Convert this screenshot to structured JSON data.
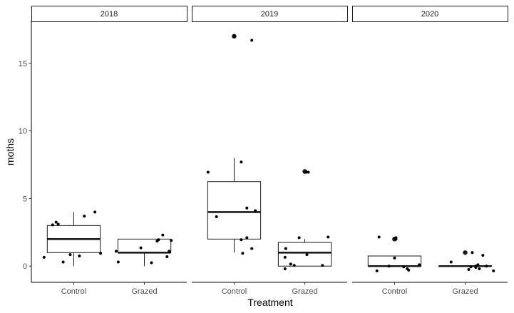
{
  "chart_data": {
    "type": "boxplot",
    "xlabel": "Treatment",
    "ylabel": "moths",
    "ylim": [
      -1.2,
      18.1
    ],
    "y_ticks": [
      0,
      5,
      10,
      15
    ],
    "y_tick_labels": [
      "0",
      "5",
      "10",
      "15"
    ],
    "categories": [
      "Control",
      "Grazed"
    ],
    "grid": false,
    "panels": [
      {
        "facet": "2018",
        "groups": [
          {
            "category": "Control",
            "q1": 1,
            "median": 2,
            "q3": 3,
            "whisker_low": 0,
            "whisker_high": 4,
            "outliers": [],
            "points": [
              [
                -0.42,
                0.65
              ],
              [
                -0.3,
                3.05
              ],
              [
                -0.25,
                3.25
              ],
              [
                -0.22,
                3.1
              ],
              [
                -0.15,
                0.3
              ],
              [
                -0.05,
                0.85
              ],
              [
                0.08,
                0.75
              ],
              [
                0.15,
                3.7
              ],
              [
                0.3,
                4.0
              ],
              [
                0.38,
                0.95
              ]
            ]
          },
          {
            "category": "Grazed",
            "q1": 1,
            "median": 1,
            "q3": 2,
            "whisker_low": 0,
            "whisker_high": 2,
            "outliers": [],
            "points": [
              [
                -0.4,
                1.1
              ],
              [
                -0.37,
                0.3
              ],
              [
                -0.05,
                1.35
              ],
              [
                0.1,
                0.25
              ],
              [
                0.18,
                1.85
              ],
              [
                0.2,
                1.95
              ],
              [
                0.26,
                2.3
              ],
              [
                0.32,
                0.7
              ],
              [
                0.35,
                1.1
              ],
              [
                0.38,
                1.9
              ]
            ]
          }
        ]
      },
      {
        "facet": "2019",
        "groups": [
          {
            "category": "Control",
            "q1": 2,
            "median": 4,
            "q3": 6.25,
            "whisker_low": 1,
            "whisker_high": 8,
            "outliers": [
              17,
              17
            ],
            "points": [
              [
                -0.37,
                6.95
              ],
              [
                -0.25,
                3.65
              ],
              [
                0.1,
                7.7
              ],
              [
                0.1,
                1.95
              ],
              [
                0.12,
                0.95
              ],
              [
                0.18,
                2.1
              ],
              [
                0.18,
                4.3
              ],
              [
                0.25,
                1.3
              ],
              [
                0.25,
                16.7
              ],
              [
                0.3,
                4.1
              ],
              [
                0.0,
                17.0
              ]
            ]
          },
          {
            "category": "Grazed",
            "q1": 0,
            "median": 1,
            "q3": 1.75,
            "whisker_low": 0,
            "whisker_high": 2,
            "outliers": [
              7,
              7
            ],
            "points": [
              [
                -0.27,
                1.3
              ],
              [
                -0.28,
                -0.2
              ],
              [
                -0.28,
                0.65
              ],
              [
                -0.2,
                0.15
              ],
              [
                -0.15,
                0.05
              ],
              [
                -0.08,
                2.1
              ],
              [
                0.02,
                6.95
              ],
              [
                0.03,
                0.85
              ],
              [
                0.05,
                6.95
              ],
              [
                0.25,
                0.05
              ],
              [
                0.33,
                2.15
              ]
            ]
          }
        ]
      },
      {
        "facet": "2020",
        "groups": [
          {
            "category": "Control",
            "q1": 0,
            "median": 0,
            "q3": 0.75,
            "whisker_low": 0,
            "whisker_high": 0.75,
            "outliers": [
              2,
              2
            ],
            "points": [
              [
                -0.25,
                -0.35
              ],
              [
                -0.22,
                2.15
              ],
              [
                -0.08,
                0.0
              ],
              [
                0.0,
                0.6
              ],
              [
                0.02,
                2.0
              ],
              [
                0.02,
                2.1
              ],
              [
                0.13,
                -0.05
              ],
              [
                0.18,
                -0.2
              ],
              [
                0.2,
                -0.3
              ],
              [
                0.35,
                0.1
              ]
            ]
          },
          {
            "category": "Grazed",
            "q1": 0,
            "median": 0,
            "q3": 0,
            "whisker_low": 0,
            "whisker_high": 0,
            "outliers": [
              1
            ],
            "points": [
              [
                -0.2,
                0.3
              ],
              [
                0.05,
                -0.25
              ],
              [
                0.08,
                -0.05
              ],
              [
                0.15,
                0.0
              ],
              [
                0.15,
                -0.1
              ],
              [
                0.18,
                0.1
              ],
              [
                0.2,
                -0.2
              ],
              [
                0.25,
                0.8
              ],
              [
                0.3,
                0.0
              ],
              [
                0.4,
                -0.35
              ],
              [
                0.1,
                1.0
              ]
            ]
          }
        ]
      }
    ]
  }
}
